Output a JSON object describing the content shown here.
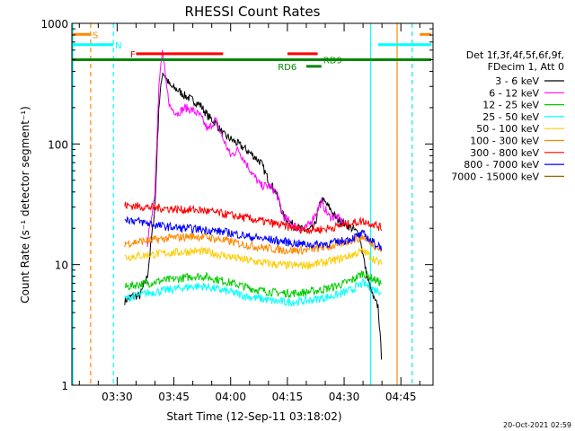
{
  "chart_data": {
    "type": "line",
    "title": "RHESSI Count Rates",
    "xlabel": "Start Time (12-Sep-11 03:18:02)",
    "ylabel": "Count Rate (s⁻¹ detector segment⁻¹)",
    "yscale": "log",
    "xlim": [
      "03:18:02",
      "04:53:30"
    ],
    "ylim": [
      1,
      1000
    ],
    "x_ticks": [
      "03:30",
      "03:45",
      "04:00",
      "04:15",
      "04:30",
      "04:45"
    ],
    "y_ticks": [
      "1",
      "10",
      "100",
      "1000"
    ],
    "legend_header": [
      "Det 1f,3f,4f,5f,6f,9f,",
      "FDecim 1, Att 0"
    ],
    "legend_position": "right",
    "series": [
      {
        "name": "3 - 6 keV",
        "color": "#000000",
        "x": [
          "03:32",
          "03:34",
          "03:36",
          "03:38",
          "03:40",
          "03:41",
          "03:42",
          "03:43",
          "03:44",
          "03:46",
          "03:48",
          "03:50",
          "03:52",
          "03:54",
          "03:56",
          "03:58",
          "04:00",
          "04:02",
          "04:04",
          "04:06",
          "04:08",
          "04:10",
          "04:12",
          "04:14",
          "04:16",
          "04:18",
          "04:20",
          "04:22",
          "04:24",
          "04:26",
          "04:28",
          "04:30",
          "04:32",
          "04:34",
          "04:36",
          "04:38",
          "04:39",
          "04:40"
        ],
        "values": [
          5,
          5.5,
          5.5,
          8,
          30,
          200,
          400,
          350,
          300,
          280,
          250,
          230,
          210,
          170,
          150,
          120,
          110,
          100,
          90,
          80,
          70,
          50,
          40,
          25,
          22,
          20,
          19,
          20,
          35,
          30,
          24,
          22,
          20,
          18,
          8,
          5,
          4.5,
          1.5
        ]
      },
      {
        "name": "6 - 12 keV",
        "color": "#ff00ff",
        "x": [
          "03:38",
          "03:40",
          "03:41",
          "03:42",
          "03:43",
          "03:44",
          "03:46",
          "03:48",
          "03:50",
          "03:52",
          "03:54",
          "03:56",
          "03:58",
          "04:00",
          "04:02",
          "04:04",
          "04:06",
          "04:08",
          "04:10",
          "04:12",
          "04:14",
          "04:16",
          "04:18",
          "04:20",
          "04:22",
          "04:24",
          "04:26",
          "04:28",
          "04:30"
        ],
        "values": [
          15,
          40,
          300,
          600,
          300,
          200,
          180,
          200,
          190,
          170,
          130,
          160,
          110,
          80,
          90,
          70,
          55,
          45,
          45,
          40,
          25,
          22,
          20,
          20,
          25,
          33,
          25,
          25,
          22
        ]
      },
      {
        "name": "12 - 25 keV",
        "color": "#00cc00",
        "x": [
          "03:32",
          "03:35",
          "03:38",
          "03:41",
          "03:44",
          "03:47",
          "03:50",
          "03:53",
          "03:56",
          "03:59",
          "04:02",
          "04:05",
          "04:08",
          "04:11",
          "04:14",
          "04:17",
          "04:20",
          "04:23",
          "04:26",
          "04:29",
          "04:32",
          "04:35",
          "04:38",
          "04:40"
        ],
        "values": [
          6.5,
          6.8,
          7,
          7.3,
          7.5,
          7.7,
          8,
          8,
          7.6,
          7.2,
          6.8,
          6.4,
          6.1,
          5.9,
          5.8,
          5.8,
          5.9,
          6.1,
          6.4,
          6.8,
          7.4,
          8.5,
          7.5,
          7
        ]
      },
      {
        "name": "25 - 50 keV",
        "color": "#00ffff",
        "x": [
          "03:32",
          "03:35",
          "03:38",
          "03:41",
          "03:44",
          "03:47",
          "03:50",
          "03:53",
          "03:56",
          "03:59",
          "04:02",
          "04:05",
          "04:08",
          "04:11",
          "04:14",
          "04:17",
          "04:20",
          "04:23",
          "04:26",
          "04:29",
          "04:32",
          "04:35",
          "04:38",
          "04:40"
        ],
        "values": [
          5.2,
          5.5,
          5.8,
          6,
          6.2,
          6.4,
          6.6,
          6.6,
          6.3,
          6,
          5.7,
          5.4,
          5.2,
          5,
          4.9,
          4.9,
          5,
          5.2,
          5.4,
          5.7,
          6.2,
          7,
          6.2,
          6
        ]
      },
      {
        "name": "50 - 100 keV",
        "color": "#ffcc00",
        "x": [
          "03:32",
          "03:35",
          "03:38",
          "03:41",
          "03:44",
          "03:47",
          "03:50",
          "03:53",
          "03:56",
          "03:59",
          "04:02",
          "04:05",
          "04:08",
          "04:11",
          "04:14",
          "04:17",
          "04:20",
          "04:23",
          "04:26",
          "04:29",
          "04:32",
          "04:35",
          "04:38",
          "04:40"
        ],
        "values": [
          11.5,
          11.8,
          12,
          12.3,
          12.5,
          12.7,
          12.9,
          12.8,
          12.3,
          11.8,
          11.2,
          10.8,
          10.4,
          10.1,
          9.9,
          9.8,
          9.9,
          10.2,
          10.6,
          11.2,
          12,
          13,
          11,
          10
        ]
      },
      {
        "name": "100 - 300 keV",
        "color": "#ff8800",
        "x": [
          "03:32",
          "03:35",
          "03:38",
          "03:41",
          "03:44",
          "03:47",
          "03:50",
          "03:53",
          "03:56",
          "03:59",
          "04:02",
          "04:05",
          "04:08",
          "04:11",
          "04:14",
          "04:17",
          "04:20",
          "04:23",
          "04:26",
          "04:29",
          "04:32",
          "04:35",
          "04:38",
          "04:40"
        ],
        "values": [
          15,
          15.4,
          15.8,
          16.2,
          16.6,
          16.9,
          17.2,
          17,
          16.4,
          15.7,
          15,
          14.4,
          13.9,
          13.5,
          13.2,
          13.1,
          13.2,
          13.6,
          14.1,
          14.8,
          16,
          17,
          14.5,
          13
        ]
      },
      {
        "name": "300 - 800 keV",
        "color": "#ff0000",
        "x": [
          "03:32",
          "03:35",
          "03:38",
          "03:41",
          "03:44",
          "03:47",
          "03:50",
          "03:53",
          "03:56",
          "03:59",
          "04:02",
          "04:05",
          "04:08",
          "04:11",
          "04:14",
          "04:17",
          "04:20",
          "04:23",
          "04:26",
          "04:29",
          "04:32",
          "04:35",
          "04:38",
          "04:40"
        ],
        "values": [
          31,
          30.5,
          30,
          29.5,
          29,
          28.5,
          28.5,
          28,
          27,
          26,
          25,
          24,
          23,
          22,
          21,
          20,
          19.5,
          19.5,
          20,
          21,
          22,
          23,
          21.5,
          20
        ]
      },
      {
        "name": "800 - 7000 keV",
        "color": "#0000ff",
        "x": [
          "03:32",
          "03:35",
          "03:38",
          "03:41",
          "03:44",
          "03:47",
          "03:50",
          "03:53",
          "03:56",
          "03:59",
          "04:02",
          "04:05",
          "04:08",
          "04:11",
          "04:14",
          "04:17",
          "04:20",
          "04:23",
          "04:26",
          "04:29",
          "04:32",
          "04:35",
          "04:38",
          "04:40"
        ],
        "values": [
          24,
          23,
          22,
          21,
          20.5,
          20,
          19.8,
          19.5,
          19,
          18.5,
          17.8,
          17,
          16.5,
          16,
          15.5,
          15,
          14.7,
          14.7,
          15,
          15.5,
          16.5,
          18,
          15,
          14
        ]
      },
      {
        "name": "7000 - 15000 keV",
        "color": "#996600",
        "x": [],
        "values": []
      }
    ],
    "attenuator_bars": [
      {
        "label": "S",
        "color": "#ff8800",
        "x": [
          "03:18",
          "03:23"
        ],
        "y": 810,
        "label_x": "03:23"
      },
      {
        "label": "S",
        "color": "#ff8800",
        "x": [
          "04:50",
          "04:53"
        ],
        "y": 810,
        "label_x": ""
      },
      {
        "label": "N",
        "color": "#00ffff",
        "x": [
          "03:18",
          "03:29"
        ],
        "y": 665,
        "label_x": "03:29"
      },
      {
        "label": "N",
        "color": "#00ffff",
        "x": [
          "04:39",
          "04:53"
        ],
        "y": 665,
        "label_x": ""
      },
      {
        "label": "F",
        "color": "#ff0000",
        "x": [
          "03:35",
          "03:58"
        ],
        "y": 560,
        "label_x": "03:33"
      },
      {
        "label": "",
        "color": "#ff0000",
        "x": [
          "04:15",
          "04:23"
        ],
        "y": 560,
        "label_x": ""
      },
      {
        "label": "RD9",
        "color": "#008800",
        "x": [
          "03:18",
          "04:53"
        ],
        "y": 500,
        "label_x": "04:24"
      },
      {
        "label": "RD6",
        "color": "#008800",
        "x": [
          "04:20",
          "04:24"
        ],
        "y": 440,
        "label_x": "04:12"
      }
    ],
    "vertical_markers": [
      {
        "x": "03:23",
        "color": "#ff8800",
        "style": "dashed"
      },
      {
        "x": "03:29",
        "color": "#00ffff",
        "style": "dashed"
      },
      {
        "x": "04:37",
        "color": "#00ffff",
        "style": "solid"
      },
      {
        "x": "04:44",
        "color": "#ff8800",
        "style": "solid"
      },
      {
        "x": "04:48",
        "color": "#ff8800",
        "style": "dashed"
      },
      {
        "x": "04:48",
        "color": "#00ffff",
        "style": "dashed"
      },
      {
        "x": "03:18",
        "color": "#00ffff",
        "style": "solid"
      }
    ]
  },
  "footer": {
    "timestamp": "20-Oct-2021 02:59"
  }
}
